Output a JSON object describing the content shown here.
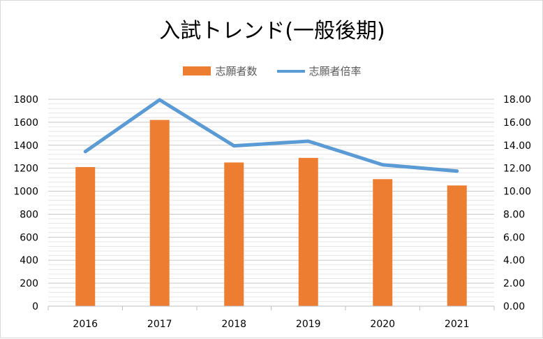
{
  "chart_data": {
    "type": "bar+line",
    "title": "入試トレンド(一般後期)",
    "categories": [
      "2016",
      "2017",
      "2018",
      "2019",
      "2020",
      "2021"
    ],
    "series": [
      {
        "name": "志願者数",
        "type": "bar",
        "axis": "left",
        "color": "#ed7d31",
        "values": [
          1210,
          1620,
          1250,
          1290,
          1105,
          1050
        ]
      },
      {
        "name": "志願者倍率",
        "type": "line",
        "axis": "right",
        "color": "#5b9bd5",
        "values": [
          13.45,
          17.95,
          13.95,
          14.35,
          12.3,
          11.75
        ]
      }
    ],
    "y_left": {
      "min": 0,
      "max": 1800,
      "step": 200,
      "ticks": [
        "0",
        "200",
        "400",
        "600",
        "800",
        "1000",
        "1200",
        "1400",
        "1600",
        "1800"
      ]
    },
    "y_right": {
      "min": 0,
      "max": 18,
      "step": 2,
      "ticks": [
        "0.00",
        "2.00",
        "4.00",
        "6.00",
        "8.00",
        "10.00",
        "12.00",
        "14.00",
        "16.00",
        "18.00"
      ]
    },
    "legend_position": "top",
    "grid": true
  }
}
